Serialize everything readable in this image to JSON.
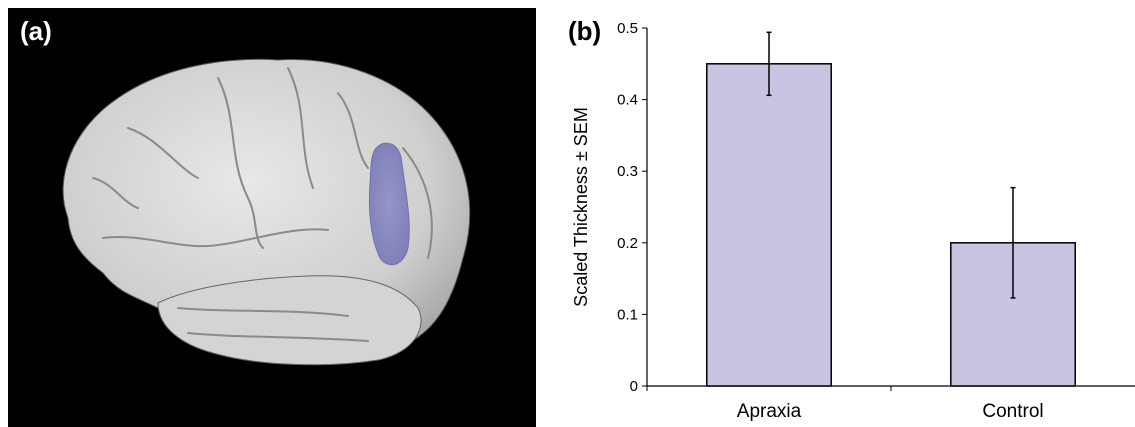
{
  "panels": {
    "a_label": "(a)",
    "b_label": "(b)"
  },
  "brain_render": {
    "background_color": "#000000",
    "surface_color": "#d9d9d7",
    "highlight_color": "#7f80c2"
  },
  "chart_data": {
    "type": "bar",
    "categories": [
      "Apraxia",
      "Control"
    ],
    "values": [
      0.45,
      0.2
    ],
    "errors": [
      0.044,
      0.077
    ],
    "xlabel": "",
    "ylabel": "Scaled Thickness ± SEM",
    "ylim": [
      0,
      0.5
    ],
    "yticks": [
      "0",
      "0.1",
      "0.2",
      "0.3",
      "0.4",
      "0.5"
    ],
    "bar_color": "#c8c4e2",
    "bar_edge_color": "#000000",
    "grid": false,
    "legend": "none"
  }
}
